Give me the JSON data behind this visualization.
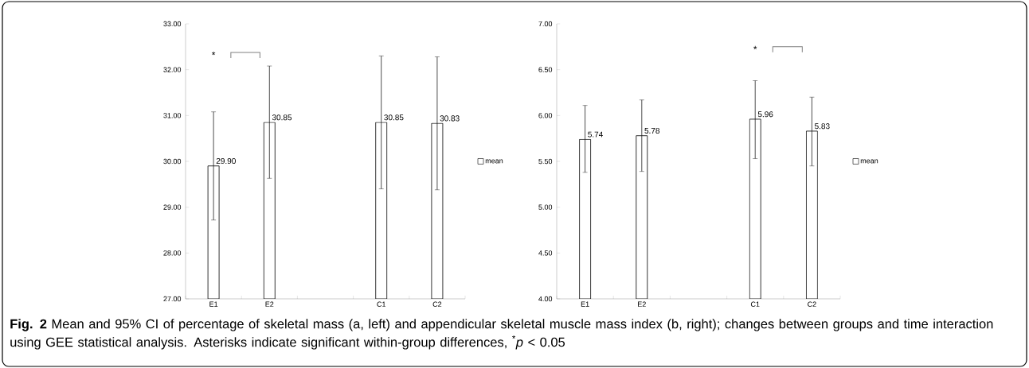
{
  "chart_data": [
    {
      "type": "bar",
      "categories": [
        "E1",
        "E2",
        null,
        "C1",
        "C2"
      ],
      "series": [
        {
          "name": "mean",
          "color": "#ffffff",
          "values": [
            29.9,
            30.85,
            null,
            30.85,
            30.83
          ],
          "errors": [
            [
              28.72,
              31.08
            ],
            [
              29.63,
              32.08
            ],
            null,
            [
              29.4,
              32.3
            ],
            [
              29.38,
              32.28
            ]
          ],
          "value_labels": [
            "29.90",
            "30.85",
            null,
            "30.85",
            "30.83"
          ]
        }
      ],
      "ylim": [
        27,
        33
      ],
      "yticks": [
        {
          "value": 27,
          "label": "27.00"
        },
        {
          "value": 28,
          "label": "28.00"
        },
        {
          "value": 29,
          "label": "29.00"
        },
        {
          "value": 30,
          "label": "30.00"
        },
        {
          "value": 31,
          "label": "31.00"
        },
        {
          "value": 32,
          "label": "32.00"
        },
        {
          "value": 33,
          "label": "33.00"
        }
      ],
      "legend": "right",
      "annotations": [
        "*",
        "**Fig. 2** Mean and 95% CI of percentage of skeletal mass (a, left) and appendicular skeletal muscle mass index (b, right); changes between groups and time interaction using GEE statistical analysis. Asterisks indicate significant within-group differences, $^{*}$*p* < 0.05"
      ]
    },
    {
      "type": "bar",
      "categories": [
        "E1",
        "E2",
        null,
        "C1",
        "C2"
      ],
      "series": [
        {
          "name": "mean",
          "color": "#ffffff",
          "values": [
            5.74,
            5.78,
            null,
            5.96,
            5.83
          ],
          "errors": [
            [
              5.38,
              6.11
            ],
            [
              5.39,
              6.17
            ],
            null,
            [
              5.53,
              6.38
            ],
            [
              5.45,
              6.2
            ]
          ],
          "value_labels": [
            "5.74",
            "5.78",
            null,
            "5.96",
            "5.83"
          ]
        }
      ],
      "ylim": [
        4,
        7
      ],
      "yticks": [
        {
          "value": 4,
          "label": "4.00"
        },
        {
          "value": 4.5,
          "label": "4.50"
        },
        {
          "value": 5,
          "label": "5.00"
        },
        {
          "value": 5.5,
          "label": "5.50"
        },
        {
          "value": 6,
          "label": "6.00"
        },
        {
          "value": 6.5,
          "label": "6.50"
        },
        {
          "value": 7,
          "label": "7.00"
        }
      ],
      "legend": "right",
      "annotations": [
        "*"
      ]
    }
  ]
}
